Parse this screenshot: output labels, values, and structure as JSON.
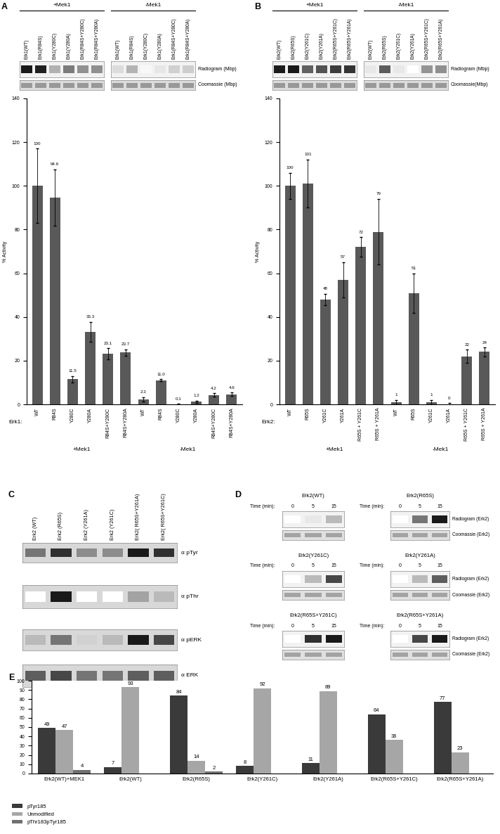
{
  "chart_data": [
    {
      "type": "bar",
      "y_label": "% Activity",
      "x_label": "Erk1:",
      "categories": [
        "WT",
        "R84S",
        "Y280C",
        "Y280A",
        "R84S+Y280C",
        "R84S+Y280A",
        "WT",
        "R84S",
        "Y280C",
        "Y280A",
        "R84S+Y280C",
        "R84S+Y280A"
      ],
      "groups": [
        "+Mek1",
        "-Mek1"
      ],
      "values": [
        100,
        94.6,
        11.5,
        33.3,
        23.1,
        23.7,
        2.3,
        11.0,
        0.1,
        1.2,
        4.2,
        4.6
      ],
      "errors": [
        17,
        13,
        1.5,
        4.5,
        2.5,
        1.5,
        1.0,
        0.5,
        0.1,
        0.5,
        0.8,
        0.8
      ],
      "color": "#595959",
      "ylim": [
        0,
        140
      ],
      "yticks": [
        0,
        20,
        40,
        60,
        80,
        100,
        120,
        140
      ],
      "data_labels": true
    },
    {
      "type": "bar",
      "y_label": "% Activity",
      "x_label": "Erk2:",
      "categories": [
        "WT",
        "R65S",
        "Y261C",
        "Y261A",
        "R65S + Y261C",
        "R65S + Y261A",
        "WT",
        "R65S",
        "Y261C",
        "Y261A",
        "R65S + Y261C",
        "R65S + Y261A"
      ],
      "groups": [
        "+Mek1",
        "-Mek1"
      ],
      "values": [
        100,
        101,
        48,
        57,
        72,
        79,
        1,
        51,
        1,
        0,
        22,
        24
      ],
      "errors": [
        6,
        11,
        2.5,
        8,
        4.5,
        15,
        1,
        9,
        1,
        0.5,
        3,
        2
      ],
      "color": "#595959",
      "ylim": [
        0,
        140
      ],
      "yticks": [
        0,
        20,
        40,
        60,
        80,
        100,
        120,
        140
      ],
      "data_labels": true
    },
    {
      "type": "bar",
      "categories": [
        "Erk2(WT)+MEK1",
        "Erk2(WT)",
        "Erk2(R65S)",
        "Erk2(Y261C)",
        "Erk2(Y261A)",
        "Erk2(R65S+Y261C)",
        "Erk2(R65S+Y261A)"
      ],
      "series": [
        {
          "name": "pTyr185",
          "color": "#3a3a3a",
          "values": [
            49,
            7,
            84,
            8,
            11,
            64,
            77
          ]
        },
        {
          "name": "Unmodified",
          "color": "#a6a6a6",
          "values": [
            47,
            93,
            14,
            92,
            89,
            36,
            23
          ]
        },
        {
          "name": "pThr183pTyr185",
          "color": "#707070",
          "values": [
            4,
            null,
            2,
            null,
            null,
            null,
            null
          ]
        }
      ],
      "ylim": [
        0,
        100
      ],
      "yticks": [
        0,
        10,
        20,
        30,
        40,
        50,
        60,
        70,
        80,
        90,
        100
      ],
      "data_labels": true,
      "legend": "lower left"
    }
  ],
  "panels": [
    "A",
    "B",
    "C",
    "D",
    "E"
  ],
  "gels": {
    "A": {
      "groups": [
        "+Mek1",
        "-Mek1"
      ],
      "lanes": [
        "Erk1(WT)",
        "Erk1(R84S)",
        "Erk1(Y280C)",
        "Erk1(Y280A)",
        "Erk1(R84S+Y280C)",
        "Erk1(R84S+Y280A)",
        "Erk1(WT)",
        "Erk1(R84S)",
        "Erk1(Y280C)",
        "Erk1(Y280A)",
        "Erk1(R84S+Y280C)",
        "Erk1(R84S+Y280A)"
      ],
      "rows": [
        "Radiogram (Mbp)",
        "Coomassie (Mbp)"
      ]
    },
    "B": {
      "groups": [
        "+Mek1",
        "-Mek1"
      ],
      "lanes": [
        "Erk2(WT)",
        "Erk2(R65S)",
        "Erk2(Y261C)",
        "Erk2(Y261A)",
        "Erk2(R65S+Y261C)",
        "Erk2(R65S+Y261A)",
        "Erk2(WT)",
        "Erk2(R65S)",
        "Erk2(Y261C)",
        "Erk2(Y261A)",
        "Erk2(R65S+Y261C)",
        "Erk2(R65S+Y261A)"
      ],
      "rows": [
        "Radiogram (Mbp)",
        "Coomassie(Mbp)"
      ]
    },
    "C": {
      "lanes": [
        "Erk2 (WT)",
        "Erk2 (R65S)",
        "Erk2 (Y261A)",
        "Erk2 (Y261C)",
        "Erk2( R65S+Y261A)",
        "Erk2( R65S+Y261C)"
      ],
      "blots": [
        {
          "label": "α pTyr",
          "bands": [
            0.6,
            0.9,
            0.5,
            0.5,
            1.0,
            0.9
          ]
        },
        {
          "label": "α pThr",
          "bands": [
            0.0,
            1.0,
            0.0,
            0.0,
            0.4,
            0.3
          ]
        },
        {
          "label": "α pERK",
          "bands": [
            0.3,
            0.6,
            0.2,
            0.3,
            1.0,
            0.8
          ]
        },
        {
          "label": "α ERK",
          "bands": [
            0.7,
            0.8,
            0.6,
            0.6,
            0.7,
            0.7
          ]
        }
      ]
    },
    "D": {
      "time_label": "Time (min):",
      "times": [
        0,
        5,
        15
      ],
      "rows": [
        "Radiogram (Erk2)",
        "Coomassie (Erk2)"
      ],
      "samples": [
        {
          "name": "Erk2(WT)",
          "radiogram": [
            0.0,
            0.1,
            0.3
          ]
        },
        {
          "name": "Erk2(R65S)",
          "radiogram": [
            0.0,
            0.6,
            1.0
          ]
        },
        {
          "name": "Erk2(Y261C)",
          "radiogram": [
            0.0,
            0.3,
            0.8
          ]
        },
        {
          "name": "Erk2(Y261A)",
          "radiogram": [
            0.0,
            0.3,
            0.7
          ]
        },
        {
          "name": "Erk2(R65S+Y261C)",
          "radiogram": [
            0.0,
            0.9,
            1.0
          ]
        },
        {
          "name": "Erk2(R65S+Y261A)",
          "radiogram": [
            0.0,
            0.8,
            1.0
          ]
        }
      ]
    }
  }
}
